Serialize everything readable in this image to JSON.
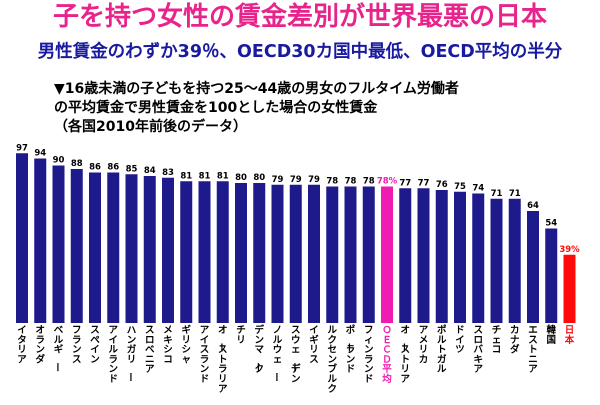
{
  "title": "子を持つ女性の賃金差別が世界最悪の日本",
  "subtitle": "男性賃金のわずか39％、OECD30カ国中最低、OECD平均の半分",
  "note_lines": [
    "▼16歳未満の子どもを持つ25～44歳の男女のフルタイム労働者",
    "の平均賃金で男性賃金を100とした場合の女性賃金",
    "（各国2010年前後のデータ）"
  ],
  "colors": {
    "default": "#1e1a8c",
    "oecd": "#f01bb0",
    "japan": "#ff0a0a",
    "title": "#e8248c",
    "subtitle": "#1a1aa0"
  },
  "chart_data": {
    "type": "bar",
    "categories": [
      "イタリア",
      "オランダ",
      "ベルギー",
      "フランス",
      "スペイン",
      "アイルランド",
      "ハンガリー",
      "スロベニア",
      "メキシコ",
      "ギリシャ",
      "アイスランド",
      "オーストラリア",
      "チリ",
      "デンマーク",
      "ノルウェー",
      "スウェーデン",
      "イギリス",
      "ルクセンブルク",
      "ポーランド",
      "フィンランド",
      "ＯＥＣＤ平均",
      "オーストリア",
      "アメリカ",
      "ポルトガル",
      "ドイツ",
      "スロバキア",
      "チェコ",
      "カナダ",
      "エストニア",
      "韓国",
      "日本"
    ],
    "values": [
      97,
      94,
      90,
      88,
      86,
      86,
      85,
      84,
      83,
      81,
      81,
      81,
      80,
      80,
      79,
      79,
      79,
      78,
      78,
      78,
      78,
      77,
      77,
      76,
      75,
      74,
      71,
      71,
      64,
      54,
      39
    ],
    "value_labels": [
      "97",
      "94",
      "90",
      "88",
      "86",
      "86",
      "85",
      "84",
      "83",
      "81",
      "81",
      "81",
      "80",
      "80",
      "79",
      "79",
      "79",
      "78",
      "78",
      "78",
      "78%",
      "77",
      "77",
      "76",
      "75",
      "74",
      "71",
      "71",
      "64",
      "54",
      "39%"
    ],
    "highlight": {
      "ＯＥＣＤ平均": "oecd",
      "日本": "japan"
    },
    "ylim": [
      0,
      100
    ]
  }
}
